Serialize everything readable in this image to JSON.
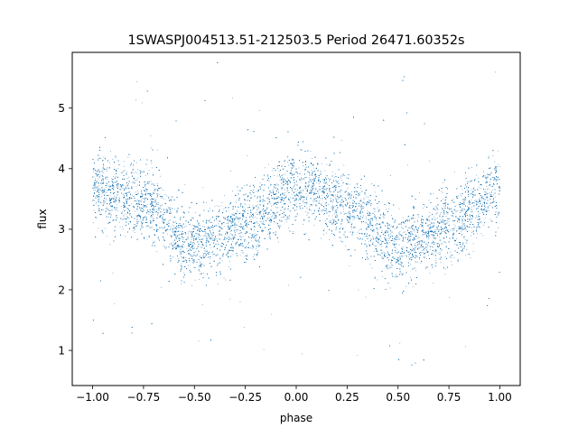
{
  "chart_data": {
    "type": "scatter",
    "title": "1SWASPJ004513.51-212503.5 Period 26471.60352s",
    "xlabel": "phase",
    "ylabel": "flux",
    "xlim": [
      -1.1,
      1.1
    ],
    "ylim": [
      0.42,
      5.92
    ],
    "x_ticks": [
      -1.0,
      -0.75,
      -0.5,
      -0.25,
      0.0,
      0.25,
      0.5,
      0.75,
      1.0
    ],
    "x_tick_labels": [
      "−1.00",
      "−0.75",
      "−0.50",
      "−0.25",
      "0.00",
      "0.25",
      "0.50",
      "0.75",
      "1.00"
    ],
    "y_ticks": [
      1,
      2,
      3,
      4,
      5
    ],
    "y_tick_labels": [
      "1",
      "2",
      "3",
      "4",
      "5"
    ],
    "grid": false,
    "legend": "none",
    "marker_color": "#1f77b4",
    "trend": {
      "description_points_phase": [
        -1.0,
        -0.75,
        -0.5,
        -0.25,
        0.0,
        0.25,
        0.5,
        0.75,
        1.0
      ],
      "description_points_flux": [
        3.65,
        3.45,
        2.7,
        3.05,
        3.7,
        3.4,
        2.7,
        3.05,
        3.65
      ]
    },
    "scatter_spread": 0.3,
    "approx_point_count": 26000
  }
}
